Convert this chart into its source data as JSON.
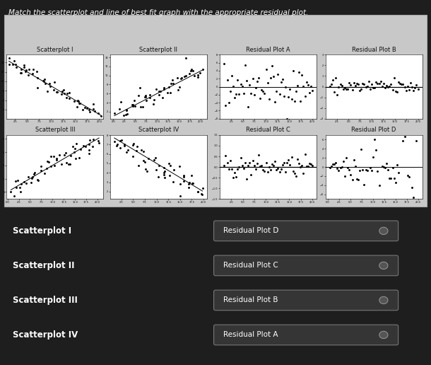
{
  "title": "Match the scatterplot and line of best fit graph with the appropriate residual plot.",
  "title_fontsize": 7.5,
  "bg_color": "#1e1e1e",
  "panel_bg": "#c8c8c8",
  "text_color": "#ffffff",
  "label_color": "#111111",
  "panel_labels_row0": [
    "Scatterplot I",
    "Scatterplot II",
    "Residual Plot A",
    "Residual Plot B"
  ],
  "panel_labels_row1": [
    "Scatterplot III",
    "Scatterplot IV",
    "Residual Plot C",
    "Residual Plot D"
  ],
  "answers": [
    {
      "left": "Scatterplot I",
      "right": "Residual Plot D"
    },
    {
      "left": "Scatterplot II",
      "right": "Residual Plot C"
    },
    {
      "left": "Scatterplot III",
      "right": "Residual Plot B"
    },
    {
      "left": "Scatterplot IV",
      "right": "Residual Plot A"
    }
  ],
  "fig_width": 6.1,
  "fig_height": 5.16,
  "dpi": 100
}
